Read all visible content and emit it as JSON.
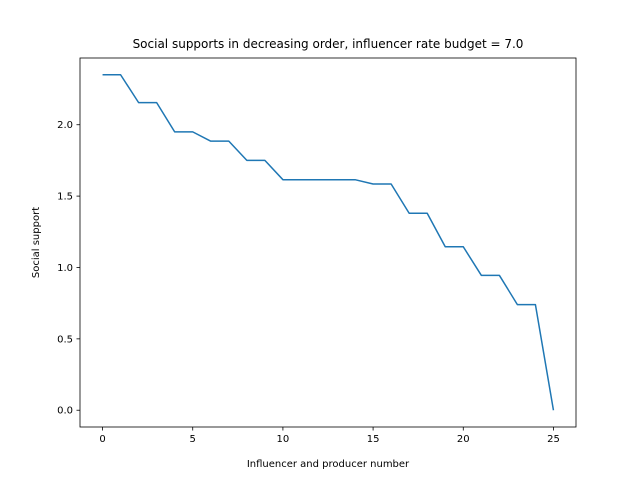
{
  "chart_data": {
    "type": "line",
    "title": "Social supports in decreasing order, influencer rate budget = 7.0",
    "xlabel": "Influencer and producer number",
    "ylabel": "Social support",
    "xlim": [
      -1.25,
      26.25
    ],
    "ylim": [
      -0.1175,
      2.4675
    ],
    "xticks": [
      0,
      5,
      10,
      15,
      20,
      25
    ],
    "xtick_labels": [
      "0",
      "5",
      "10",
      "15",
      "20",
      "25"
    ],
    "yticks": [
      0.0,
      0.5,
      1.0,
      1.5,
      2.0
    ],
    "ytick_labels": [
      "0.0",
      "0.5",
      "1.0",
      "1.5",
      "2.0"
    ],
    "grid": false,
    "color": "#1f77b4",
    "series": [
      {
        "x": [
          0,
          1,
          2,
          3,
          4,
          5,
          6,
          7,
          8,
          9,
          10,
          11,
          12,
          13,
          14,
          15,
          16,
          17,
          18,
          19,
          20,
          21,
          22,
          23,
          24,
          25
        ],
        "y": [
          2.35,
          2.35,
          2.155,
          2.155,
          1.95,
          1.95,
          1.885,
          1.885,
          1.75,
          1.75,
          1.615,
          1.615,
          1.615,
          1.615,
          1.615,
          1.585,
          1.585,
          1.38,
          1.38,
          1.145,
          1.145,
          0.945,
          0.945,
          0.74,
          0.74,
          0.0
        ]
      }
    ]
  }
}
